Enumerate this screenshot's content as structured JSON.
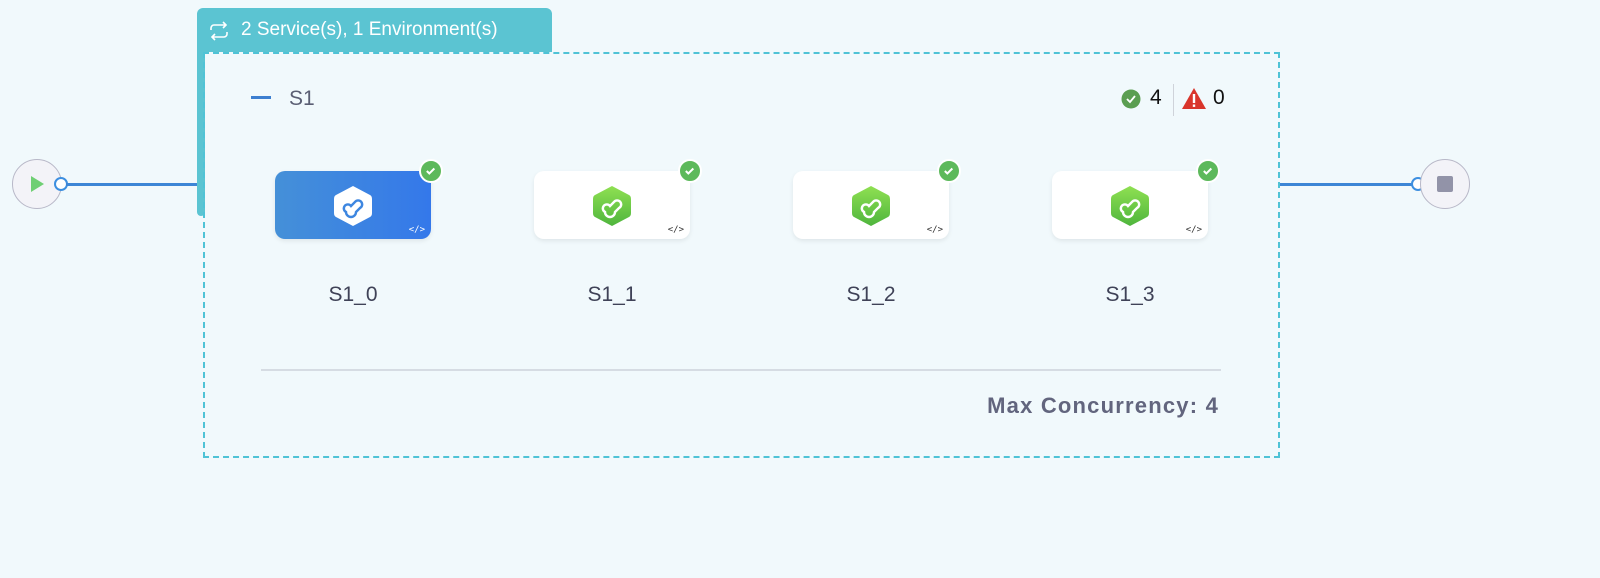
{
  "group_header": {
    "label": "2 Service(s), 1 Environment(s)",
    "icon": "loop-icon",
    "color": "#5bc4d2"
  },
  "stage": {
    "title": "S1",
    "success_count": "4",
    "warning_count": "0",
    "nodes": [
      {
        "label": "S1_0",
        "selected": true,
        "status": "success"
      },
      {
        "label": "S1_1",
        "selected": false,
        "status": "success"
      },
      {
        "label": "S1_2",
        "selected": false,
        "status": "success"
      },
      {
        "label": "S1_3",
        "selected": false,
        "status": "success"
      }
    ],
    "max_concurrency": "Max Concurrency: 4"
  },
  "colors": {
    "success": "#5db95b",
    "warning": "#d9352b",
    "selected_node": "#3d86e0",
    "edge": "#3d86d6"
  }
}
